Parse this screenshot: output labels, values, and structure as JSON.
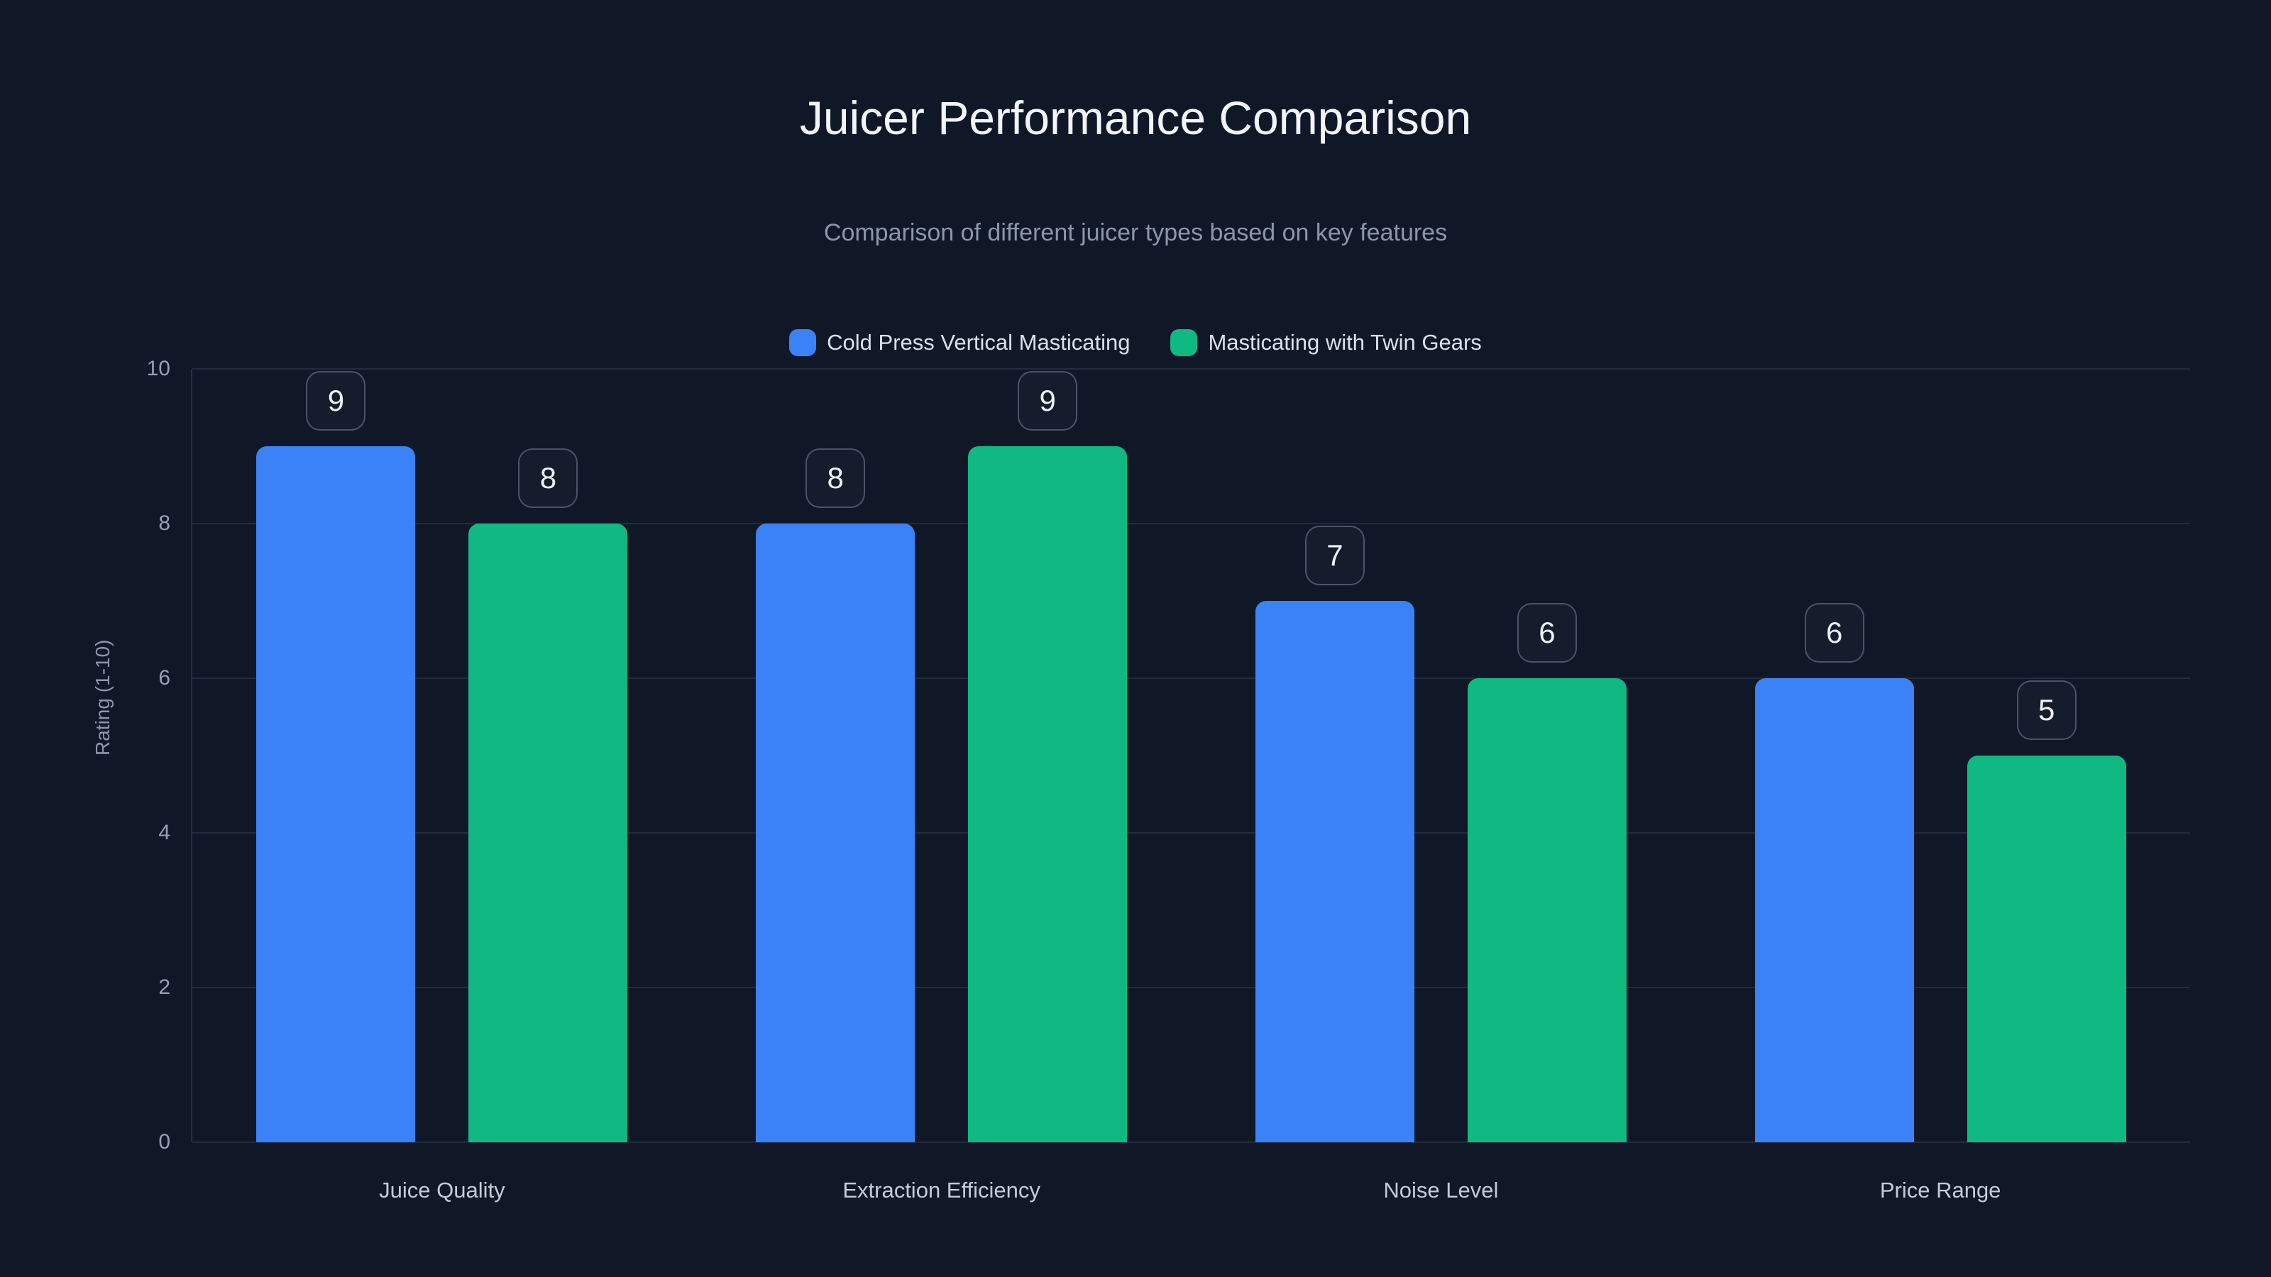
{
  "page": {
    "background_color": "#101828"
  },
  "chart_data": {
    "type": "bar",
    "title": "Juicer Performance Comparison",
    "subtitle": "Comparison of different juicer types based on key features",
    "ylabel": "Rating (1-10)",
    "xlabel": "",
    "categories": [
      "Juice Quality",
      "Extraction Efficiency",
      "Noise Level",
      "Price Range"
    ],
    "series": [
      {
        "name": "Cold Press Vertical Masticating",
        "color": "#3b82f6",
        "values": [
          9,
          8,
          7,
          6
        ]
      },
      {
        "name": "Masticating with Twin Gears",
        "color": "#10b981",
        "values": [
          8,
          9,
          6,
          5
        ]
      }
    ],
    "ylim": [
      0,
      10
    ],
    "yticks": [
      0,
      2,
      4,
      6,
      8,
      10
    ],
    "grid": "horizontal",
    "legend_position": "top",
    "value_labels": "badge-above-bar",
    "grid_color": "rgba(148,163,184,0.15)",
    "badge_border_color": "rgba(148,163,184,0.42)",
    "text_colors": {
      "title": "#f2f5f9",
      "subtitle": "#8b97a9",
      "legend": "#dbe1ea",
      "ticks": "#96a1b3",
      "category_labels": "#c3cbd7",
      "badge_value": "#eef2f6"
    }
  }
}
